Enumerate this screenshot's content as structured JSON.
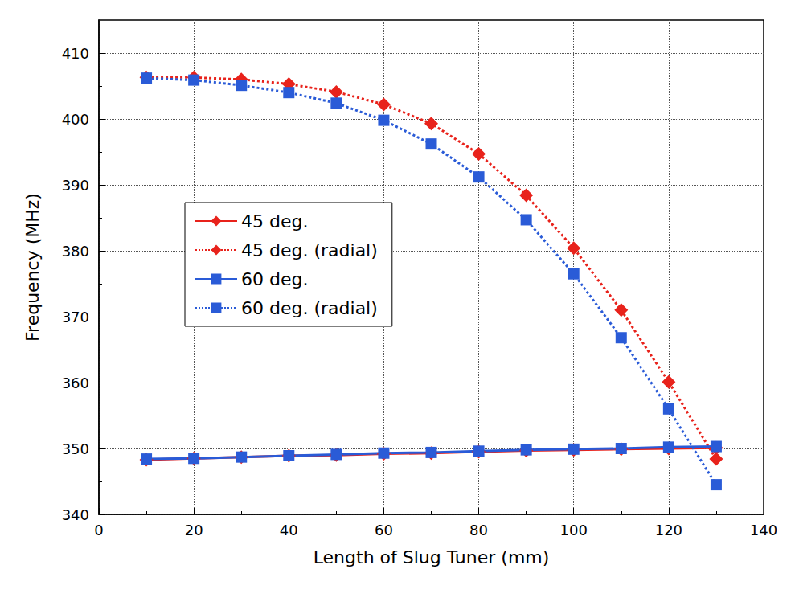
{
  "chart_data": {
    "type": "line",
    "x_label": "Length of Slug Tuner (mm)",
    "y_label": "Frequency (MHz)",
    "xlim": [
      0,
      140
    ],
    "xticks": [
      0,
      20,
      40,
      60,
      80,
      100,
      120,
      140
    ],
    "ylim": [
      340,
      415
    ],
    "yticks": [
      340,
      350,
      360,
      370,
      380,
      390,
      400,
      410
    ],
    "grid": true,
    "legend": "left",
    "x": [
      10,
      20,
      30,
      40,
      50,
      60,
      70,
      80,
      90,
      100,
      110,
      120,
      130
    ],
    "series": [
      {
        "name": "45 deg.",
        "color": "#e8221b",
        "marker": "diamond",
        "line_style": "solid",
        "values": [
          348.3,
          348.5,
          348.7,
          348.9,
          349.0,
          349.2,
          349.3,
          349.5,
          349.7,
          349.8,
          349.9,
          350.0,
          350.1
        ]
      },
      {
        "name": "45 deg. (radial)",
        "color": "#e8221b",
        "marker": "diamond",
        "line_style": "dotted",
        "values": [
          406.3,
          406.3,
          406.0,
          405.3,
          404.1,
          402.2,
          399.3,
          394.7,
          388.4,
          380.4,
          371.0,
          360.1,
          348.4
        ]
      },
      {
        "name": "60 deg.",
        "color": "#2a5bd7",
        "marker": "square",
        "line_style": "solid",
        "values": [
          348.4,
          348.5,
          348.7,
          348.9,
          349.1,
          349.3,
          349.4,
          349.6,
          349.8,
          349.9,
          350.0,
          350.2,
          350.3
        ]
      },
      {
        "name": "60 deg. (radial)",
        "color": "#2a5bd7",
        "marker": "square",
        "line_style": "dotted",
        "values": [
          406.2,
          405.9,
          405.1,
          404.0,
          402.4,
          399.8,
          396.2,
          391.2,
          384.7,
          376.5,
          366.8,
          356.0,
          344.5
        ]
      }
    ]
  }
}
